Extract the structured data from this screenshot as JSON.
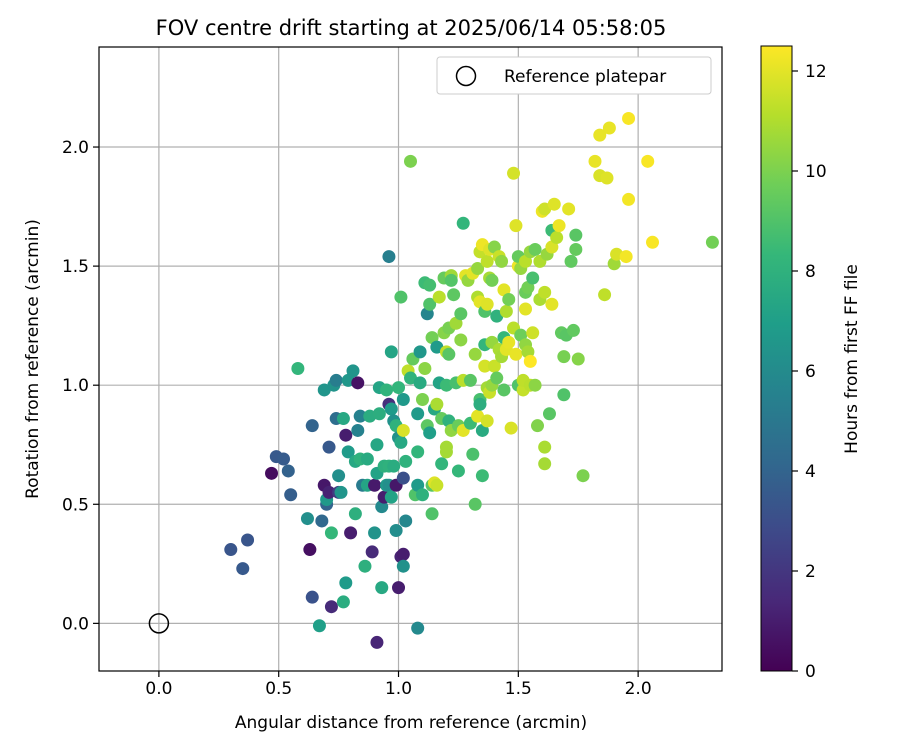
{
  "chart_data": {
    "type": "scatter",
    "title": "FOV centre drift starting at 2025/06/14 05:58:05",
    "xlabel": "Angular distance from reference (arcmin)",
    "ylabel": "Rotation from reference (arcmin)",
    "xlim": [
      -0.25,
      2.35
    ],
    "ylim": [
      -0.2,
      2.42
    ],
    "x_ticks": [
      0.0,
      0.5,
      1.0,
      1.5,
      2.0
    ],
    "y_ticks": [
      0.0,
      0.5,
      1.0,
      1.5,
      2.0
    ],
    "x_tick_labels": [
      "0.0",
      "0.5",
      "1.0",
      "1.5",
      "2.0"
    ],
    "y_tick_labels": [
      "0.0",
      "0.5",
      "1.0",
      "1.5",
      "2.0"
    ],
    "grid": true,
    "legend": {
      "placement": "top-right",
      "label": "Reference platepar"
    },
    "reference": {
      "x": 0.0,
      "y": 0.0
    },
    "colorbar": {
      "label": "Hours from first FF file",
      "colormap": "viridis",
      "range": [
        0,
        12.5
      ],
      "ticks": [
        0,
        2,
        4,
        6,
        8,
        10,
        12
      ],
      "tick_labels": [
        "0",
        "2",
        "4",
        "6",
        "8",
        "10",
        "12"
      ]
    },
    "points": [
      [
        0.3,
        0.31,
        3.3
      ],
      [
        0.35,
        0.23,
        3.5
      ],
      [
        0.37,
        0.35,
        3.3
      ],
      [
        0.47,
        0.63,
        0.4
      ],
      [
        0.49,
        0.7,
        3.5
      ],
      [
        0.52,
        0.69,
        3.6
      ],
      [
        0.54,
        0.64,
        3.9
      ],
      [
        0.55,
        0.54,
        3.7
      ],
      [
        0.58,
        1.07,
        8.2
      ],
      [
        0.62,
        0.44,
        6.2
      ],
      [
        0.63,
        0.31,
        0.5
      ],
      [
        0.64,
        0.11,
        3.2
      ],
      [
        0.64,
        0.83,
        4.0
      ],
      [
        0.67,
        -0.01,
        7.0
      ],
      [
        0.68,
        0.43,
        4.2
      ],
      [
        0.69,
        0.98,
        6.5
      ],
      [
        0.69,
        0.58,
        0.8
      ],
      [
        0.7,
        0.5,
        4.0
      ],
      [
        0.7,
        0.52,
        6.7
      ],
      [
        0.71,
        0.55,
        1.2
      ],
      [
        0.71,
        0.74,
        3.5
      ],
      [
        0.72,
        0.07,
        1.5
      ],
      [
        0.72,
        0.38,
        8.3
      ],
      [
        0.73,
        1.0,
        6.4
      ],
      [
        0.74,
        0.86,
        4.5
      ],
      [
        0.74,
        1.02,
        5.3
      ],
      [
        0.75,
        0.55,
        2.2
      ],
      [
        0.75,
        0.62,
        6.2
      ],
      [
        0.76,
        0.55,
        6.5
      ],
      [
        0.77,
        0.09,
        7.7
      ],
      [
        0.77,
        0.86,
        7.5
      ],
      [
        0.78,
        0.79,
        1.0
      ],
      [
        0.78,
        0.17,
        6.8
      ],
      [
        0.79,
        1.02,
        6.6
      ],
      [
        0.79,
        0.72,
        6.8
      ],
      [
        0.8,
        0.38,
        1.0
      ],
      [
        0.81,
        1.06,
        6.5
      ],
      [
        0.82,
        0.68,
        7.5
      ],
      [
        0.82,
        0.46,
        7.9
      ],
      [
        0.83,
        1.01,
        0.6
      ],
      [
        0.83,
        0.81,
        5.5
      ],
      [
        0.84,
        0.87,
        5.5
      ],
      [
        0.84,
        0.69,
        8.0
      ],
      [
        0.85,
        0.58,
        5.2
      ],
      [
        0.86,
        0.24,
        7.9
      ],
      [
        0.87,
        0.58,
        7.3
      ],
      [
        0.87,
        0.69,
        7.6
      ],
      [
        0.88,
        0.87,
        7.7
      ],
      [
        0.89,
        0.3,
        1.5
      ],
      [
        0.9,
        0.38,
        6.4
      ],
      [
        0.9,
        0.58,
        0.9
      ],
      [
        0.91,
        -0.08,
        1.3
      ],
      [
        0.91,
        0.63,
        7.2
      ],
      [
        0.91,
        0.75,
        7.4
      ],
      [
        0.92,
        0.88,
        7.8
      ],
      [
        0.92,
        0.99,
        7.3
      ],
      [
        0.93,
        0.49,
        5.9
      ],
      [
        0.93,
        0.15,
        7.5
      ],
      [
        0.94,
        0.53,
        1.0
      ],
      [
        0.94,
        0.66,
        7.9
      ],
      [
        0.95,
        0.58,
        6.8
      ],
      [
        0.95,
        0.98,
        8.1
      ],
      [
        0.96,
        0.92,
        1.7
      ],
      [
        0.96,
        0.58,
        6.2
      ],
      [
        0.96,
        0.66,
        8.0
      ],
      [
        0.96,
        1.54,
        5.4
      ],
      [
        0.97,
        0.53,
        7.2
      ],
      [
        0.97,
        0.9,
        6.8
      ],
      [
        0.97,
        1.14,
        7.3
      ],
      [
        0.98,
        0.85,
        6.3
      ],
      [
        0.98,
        0.66,
        7.7
      ],
      [
        0.99,
        0.83,
        8.0
      ],
      [
        0.99,
        0.58,
        0.8
      ],
      [
        0.99,
        0.39,
        6.1
      ],
      [
        1.0,
        0.78,
        6.3
      ],
      [
        1.0,
        0.99,
        8.2
      ],
      [
        1.0,
        0.15,
        1.0
      ],
      [
        1.01,
        0.76,
        7.5
      ],
      [
        1.01,
        0.28,
        1.2
      ],
      [
        1.01,
        1.37,
        9.0
      ],
      [
        1.02,
        0.29,
        1.0
      ],
      [
        1.02,
        0.24,
        6.3
      ],
      [
        1.02,
        0.94,
        6.7
      ],
      [
        1.02,
        0.81,
        11.8
      ],
      [
        1.02,
        0.61,
        3.1
      ],
      [
        1.03,
        0.43,
        5.8
      ],
      [
        1.03,
        0.68,
        8.0
      ],
      [
        1.04,
        1.06,
        11.3
      ],
      [
        1.05,
        1.03,
        8.1
      ],
      [
        1.05,
        1.94,
        10.0
      ],
      [
        1.06,
        1.11,
        9.5
      ],
      [
        1.07,
        0.54,
        9.0
      ],
      [
        1.08,
        0.88,
        6.8
      ],
      [
        1.08,
        0.72,
        8.2
      ],
      [
        1.08,
        0.58,
        6.8
      ],
      [
        1.08,
        -0.02,
        5.9
      ],
      [
        1.09,
        1.14,
        6.6
      ],
      [
        1.09,
        1.01,
        7.6
      ],
      [
        1.1,
        0.54,
        8.0
      ],
      [
        1.1,
        0.94,
        10.0
      ],
      [
        1.11,
        1.07,
        10.3
      ],
      [
        1.11,
        1.43,
        8.5
      ],
      [
        1.12,
        1.3,
        5.7
      ],
      [
        1.12,
        0.83,
        9.3
      ],
      [
        1.13,
        0.8,
        7.0
      ],
      [
        1.13,
        1.42,
        8.7
      ],
      [
        1.13,
        1.34,
        9.0
      ],
      [
        1.14,
        0.58,
        9.2
      ],
      [
        1.14,
        0.46,
        9.0
      ],
      [
        1.14,
        1.2,
        9.8
      ],
      [
        1.15,
        0.9,
        7.5
      ],
      [
        1.15,
        0.59,
        11.9
      ],
      [
        1.16,
        1.16,
        6.8
      ],
      [
        1.16,
        0.58,
        11.5
      ],
      [
        1.16,
        0.92,
        10.9
      ],
      [
        1.17,
        1.37,
        11.2
      ],
      [
        1.17,
        1.01,
        7.2
      ],
      [
        1.18,
        0.67,
        8.2
      ],
      [
        1.18,
        0.86,
        9.5
      ],
      [
        1.19,
        1.45,
        9.5
      ],
      [
        1.19,
        1.22,
        10.2
      ],
      [
        1.2,
        0.72,
        10.8
      ],
      [
        1.2,
        0.74,
        10.8
      ],
      [
        1.2,
        1.14,
        11.3
      ],
      [
        1.2,
        1.0,
        8.5
      ],
      [
        1.21,
        0.85,
        8.0
      ],
      [
        1.21,
        1.24,
        9.9
      ],
      [
        1.21,
        1.13,
        9.2
      ],
      [
        1.22,
        1.46,
        10.7
      ],
      [
        1.22,
        0.81,
        10.4
      ],
      [
        1.22,
        1.44,
        9.1
      ],
      [
        1.23,
        1.38,
        9.3
      ],
      [
        1.24,
        1.26,
        10.7
      ],
      [
        1.24,
        1.01,
        8.8
      ],
      [
        1.25,
        0.64,
        8.3
      ],
      [
        1.25,
        0.83,
        9.6
      ],
      [
        1.26,
        1.19,
        10.3
      ],
      [
        1.26,
        1.3,
        9.2
      ],
      [
        1.27,
        1.68,
        8.2
      ],
      [
        1.27,
        1.02,
        11.2
      ],
      [
        1.27,
        0.81,
        12.0
      ],
      [
        1.28,
        1.46,
        12.0
      ],
      [
        1.29,
        1.44,
        10.5
      ],
      [
        1.3,
        0.84,
        8.5
      ],
      [
        1.3,
        1.02,
        9.2
      ],
      [
        1.31,
        1.47,
        12.0
      ],
      [
        1.31,
        0.71,
        8.9
      ],
      [
        1.32,
        1.13,
        10.5
      ],
      [
        1.32,
        0.5,
        9.2
      ],
      [
        1.33,
        1.49,
        10.5
      ],
      [
        1.33,
        1.37,
        11.0
      ],
      [
        1.33,
        0.87,
        12.0
      ],
      [
        1.34,
        0.94,
        8.8
      ],
      [
        1.34,
        1.35,
        12.0
      ],
      [
        1.34,
        1.56,
        11.4
      ],
      [
        1.34,
        0.92,
        7.8
      ],
      [
        1.35,
        0.81,
        7.6
      ],
      [
        1.35,
        1.59,
        12.2
      ],
      [
        1.35,
        0.62,
        8.5
      ],
      [
        1.36,
        1.17,
        8.2
      ],
      [
        1.36,
        1.31,
        9.0
      ],
      [
        1.36,
        1.08,
        11.7
      ],
      [
        1.37,
        1.34,
        11.9
      ],
      [
        1.37,
        1.52,
        11.3
      ],
      [
        1.37,
        0.99,
        10.8
      ],
      [
        1.37,
        0.85,
        11.7
      ],
      [
        1.38,
        1.57,
        11.9
      ],
      [
        1.38,
        1.45,
        10.8
      ],
      [
        1.38,
        0.97,
        11.5
      ],
      [
        1.39,
        1.0,
        10.5
      ],
      [
        1.39,
        1.18,
        10.5
      ],
      [
        1.39,
        1.44,
        9.8
      ],
      [
        1.4,
        1.58,
        10.2
      ],
      [
        1.4,
        1.08,
        11.5
      ],
      [
        1.41,
        1.29,
        8.0
      ],
      [
        1.41,
        1.03,
        9.5
      ],
      [
        1.42,
        1.54,
        11.5
      ],
      [
        1.42,
        1.15,
        10.9
      ],
      [
        1.43,
        1.52,
        10.4
      ],
      [
        1.43,
        1.12,
        10.8
      ],
      [
        1.44,
        1.4,
        12.0
      ],
      [
        1.44,
        1.2,
        8.3
      ],
      [
        1.44,
        0.98,
        9.2
      ],
      [
        1.45,
        1.31,
        11.0
      ],
      [
        1.45,
        1.15,
        12.0
      ],
      [
        1.46,
        1.18,
        12.1
      ],
      [
        1.46,
        1.36,
        9.8
      ],
      [
        1.47,
        0.82,
        11.8
      ],
      [
        1.48,
        1.89,
        11.7
      ],
      [
        1.48,
        1.24,
        11.2
      ],
      [
        1.49,
        1.67,
        11.9
      ],
      [
        1.49,
        1.13,
        12.1
      ],
      [
        1.5,
        1.5,
        12.2
      ],
      [
        1.5,
        1.54,
        9.5
      ],
      [
        1.5,
        1.0,
        9.0
      ],
      [
        1.51,
        1.21,
        9.7
      ],
      [
        1.51,
        1.49,
        10.5
      ],
      [
        1.52,
        0.98,
        11.4
      ],
      [
        1.52,
        1.02,
        11.3
      ],
      [
        1.53,
        1.17,
        10.4
      ],
      [
        1.53,
        1.39,
        9.6
      ],
      [
        1.53,
        1.52,
        11.2
      ],
      [
        1.53,
        1.32,
        12.0
      ],
      [
        1.54,
        1.14,
        10.8
      ],
      [
        1.54,
        1.41,
        9.8
      ],
      [
        1.55,
        1.0,
        11.2
      ],
      [
        1.55,
        1.1,
        12.5
      ],
      [
        1.55,
        1.56,
        10.5
      ],
      [
        1.56,
        1.45,
        8.8
      ],
      [
        1.56,
        1.22,
        11.6
      ],
      [
        1.57,
        1.57,
        9.6
      ],
      [
        1.57,
        1.0,
        10.3
      ],
      [
        1.58,
        0.83,
        10.1
      ],
      [
        1.59,
        1.52,
        11.0
      ],
      [
        1.59,
        1.36,
        10.9
      ],
      [
        1.6,
        1.73,
        12.2
      ],
      [
        1.61,
        0.67,
        10.8
      ],
      [
        1.61,
        1.74,
        11.6
      ],
      [
        1.61,
        1.39,
        11.3
      ],
      [
        1.61,
        0.74,
        10.9
      ],
      [
        1.62,
        1.55,
        10.5
      ],
      [
        1.63,
        0.88,
        9.2
      ],
      [
        1.64,
        1.34,
        12.0
      ],
      [
        1.64,
        1.58,
        11.8
      ],
      [
        1.64,
        1.65,
        8.5
      ],
      [
        1.65,
        1.76,
        11.9
      ],
      [
        1.66,
        1.62,
        11.2
      ],
      [
        1.67,
        1.67,
        12.2
      ],
      [
        1.68,
        1.22,
        9.4
      ],
      [
        1.69,
        0.96,
        9.0
      ],
      [
        1.69,
        1.12,
        9.9
      ],
      [
        1.7,
        1.21,
        9.2
      ],
      [
        1.71,
        1.74,
        12.0
      ],
      [
        1.72,
        1.52,
        9.4
      ],
      [
        1.73,
        1.23,
        9.4
      ],
      [
        1.74,
        1.57,
        9.5
      ],
      [
        1.74,
        1.63,
        9.2
      ],
      [
        1.75,
        1.11,
        10.2
      ],
      [
        1.77,
        0.62,
        10.0
      ],
      [
        1.82,
        1.94,
        12.1
      ],
      [
        1.84,
        2.05,
        12.1
      ],
      [
        1.84,
        1.88,
        11.8
      ],
      [
        1.86,
        1.38,
        11.3
      ],
      [
        1.87,
        1.87,
        11.9
      ],
      [
        1.88,
        2.08,
        12.1
      ],
      [
        1.9,
        1.51,
        10.7
      ],
      [
        1.91,
        1.55,
        11.8
      ],
      [
        1.95,
        1.54,
        12.3
      ],
      [
        1.96,
        2.12,
        12.4
      ],
      [
        1.96,
        1.78,
        12.3
      ],
      [
        2.04,
        1.94,
        12.4
      ],
      [
        2.06,
        1.6,
        12.4
      ],
      [
        2.31,
        1.6,
        9.8
      ]
    ]
  }
}
